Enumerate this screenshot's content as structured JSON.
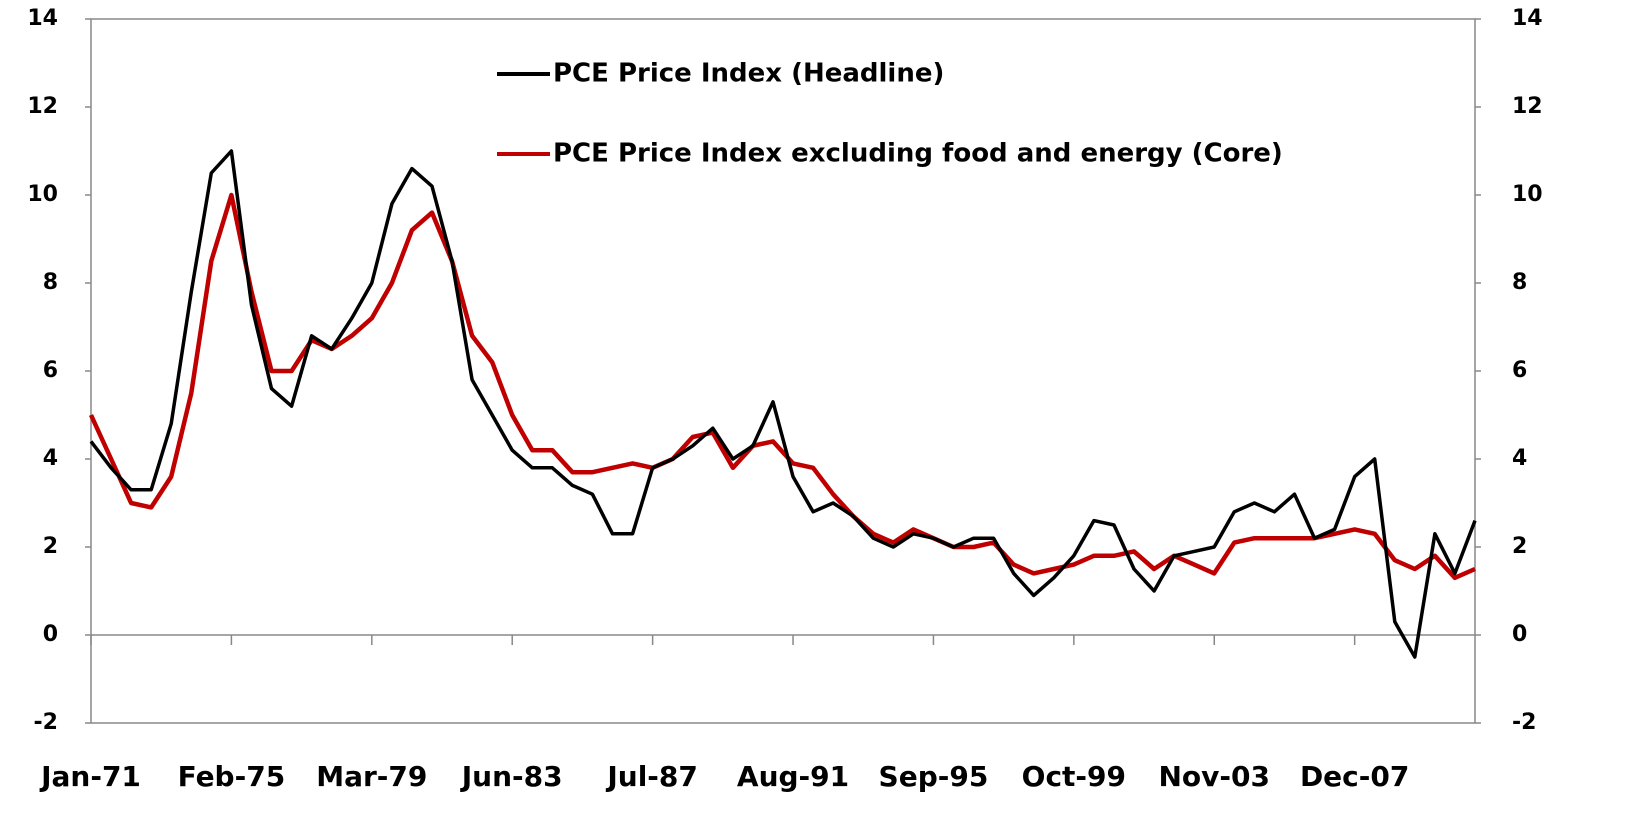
{
  "chart_data": {
    "type": "line",
    "categories": [
      "Jan-71",
      null,
      null,
      null,
      null,
      null,
      null,
      "Feb-75",
      null,
      null,
      null,
      null,
      null,
      null,
      "Mar-79",
      null,
      null,
      null,
      null,
      null,
      null,
      "Jun-83",
      null,
      null,
      null,
      null,
      null,
      null,
      "Jul-87",
      null,
      null,
      null,
      null,
      null,
      null,
      "Aug-91",
      null,
      null,
      null,
      null,
      null,
      null,
      "Sep-95",
      null,
      null,
      null,
      null,
      null,
      null,
      "Oct-99",
      null,
      null,
      null,
      null,
      null,
      null,
      "Nov-03",
      null,
      null,
      null,
      null,
      null,
      null,
      "Dec-07",
      null,
      null,
      null,
      null,
      null,
      null
    ],
    "series": [
      {
        "name": "PCE Price Index (Headline)",
        "color": "#000000",
        "values": [
          4.4,
          3.8,
          3.3,
          3.3,
          4.8,
          7.8,
          10.5,
          11.0,
          7.5,
          5.6,
          5.2,
          6.8,
          6.5,
          7.2,
          8.0,
          9.8,
          10.6,
          10.2,
          8.5,
          5.8,
          5.0,
          4.2,
          3.8,
          3.8,
          3.4,
          3.2,
          2.3,
          2.3,
          3.8,
          4.0,
          4.3,
          4.7,
          4.0,
          4.3,
          5.3,
          3.6,
          2.8,
          3.0,
          2.7,
          2.2,
          2.0,
          2.3,
          2.2,
          2.0,
          2.2,
          2.2,
          1.4,
          0.9,
          1.3,
          1.8,
          2.6,
          2.5,
          1.5,
          1.0,
          1.8,
          1.9,
          2.0,
          2.8,
          3.0,
          2.8,
          3.2,
          2.2,
          2.4,
          3.6,
          4.0,
          0.3,
          -0.5,
          2.3,
          1.4,
          2.6
        ]
      },
      {
        "name": "PCE Price Index excluding food and energy (Core)",
        "color": "#c00000",
        "values": [
          5.0,
          4.0,
          3.0,
          2.9,
          3.6,
          5.5,
          8.5,
          10.0,
          7.8,
          6.0,
          6.0,
          6.7,
          6.5,
          6.8,
          7.2,
          8.0,
          9.2,
          9.6,
          8.5,
          6.8,
          6.2,
          5.0,
          4.2,
          4.2,
          3.7,
          3.7,
          3.8,
          3.9,
          3.8,
          4.0,
          4.5,
          4.6,
          3.8,
          4.3,
          4.4,
          3.9,
          3.8,
          3.2,
          2.7,
          2.3,
          2.1,
          2.4,
          2.2,
          2.0,
          2.0,
          2.1,
          1.6,
          1.4,
          1.5,
          1.6,
          1.8,
          1.8,
          1.9,
          1.5,
          1.8,
          1.6,
          1.4,
          2.1,
          2.2,
          2.2,
          2.2,
          2.2,
          2.3,
          2.4,
          2.3,
          1.7,
          1.5,
          1.8,
          1.3,
          1.5
        ]
      }
    ],
    "ylim": [
      -2,
      14
    ],
    "yticks": [
      -2,
      0,
      2,
      4,
      6,
      8,
      10,
      12,
      14
    ],
    "y2lim": [
      -2,
      14
    ],
    "y2ticks": [
      -2,
      0,
      2,
      4,
      6,
      8,
      10,
      12,
      14
    ],
    "grid": false,
    "legend": "top"
  }
}
